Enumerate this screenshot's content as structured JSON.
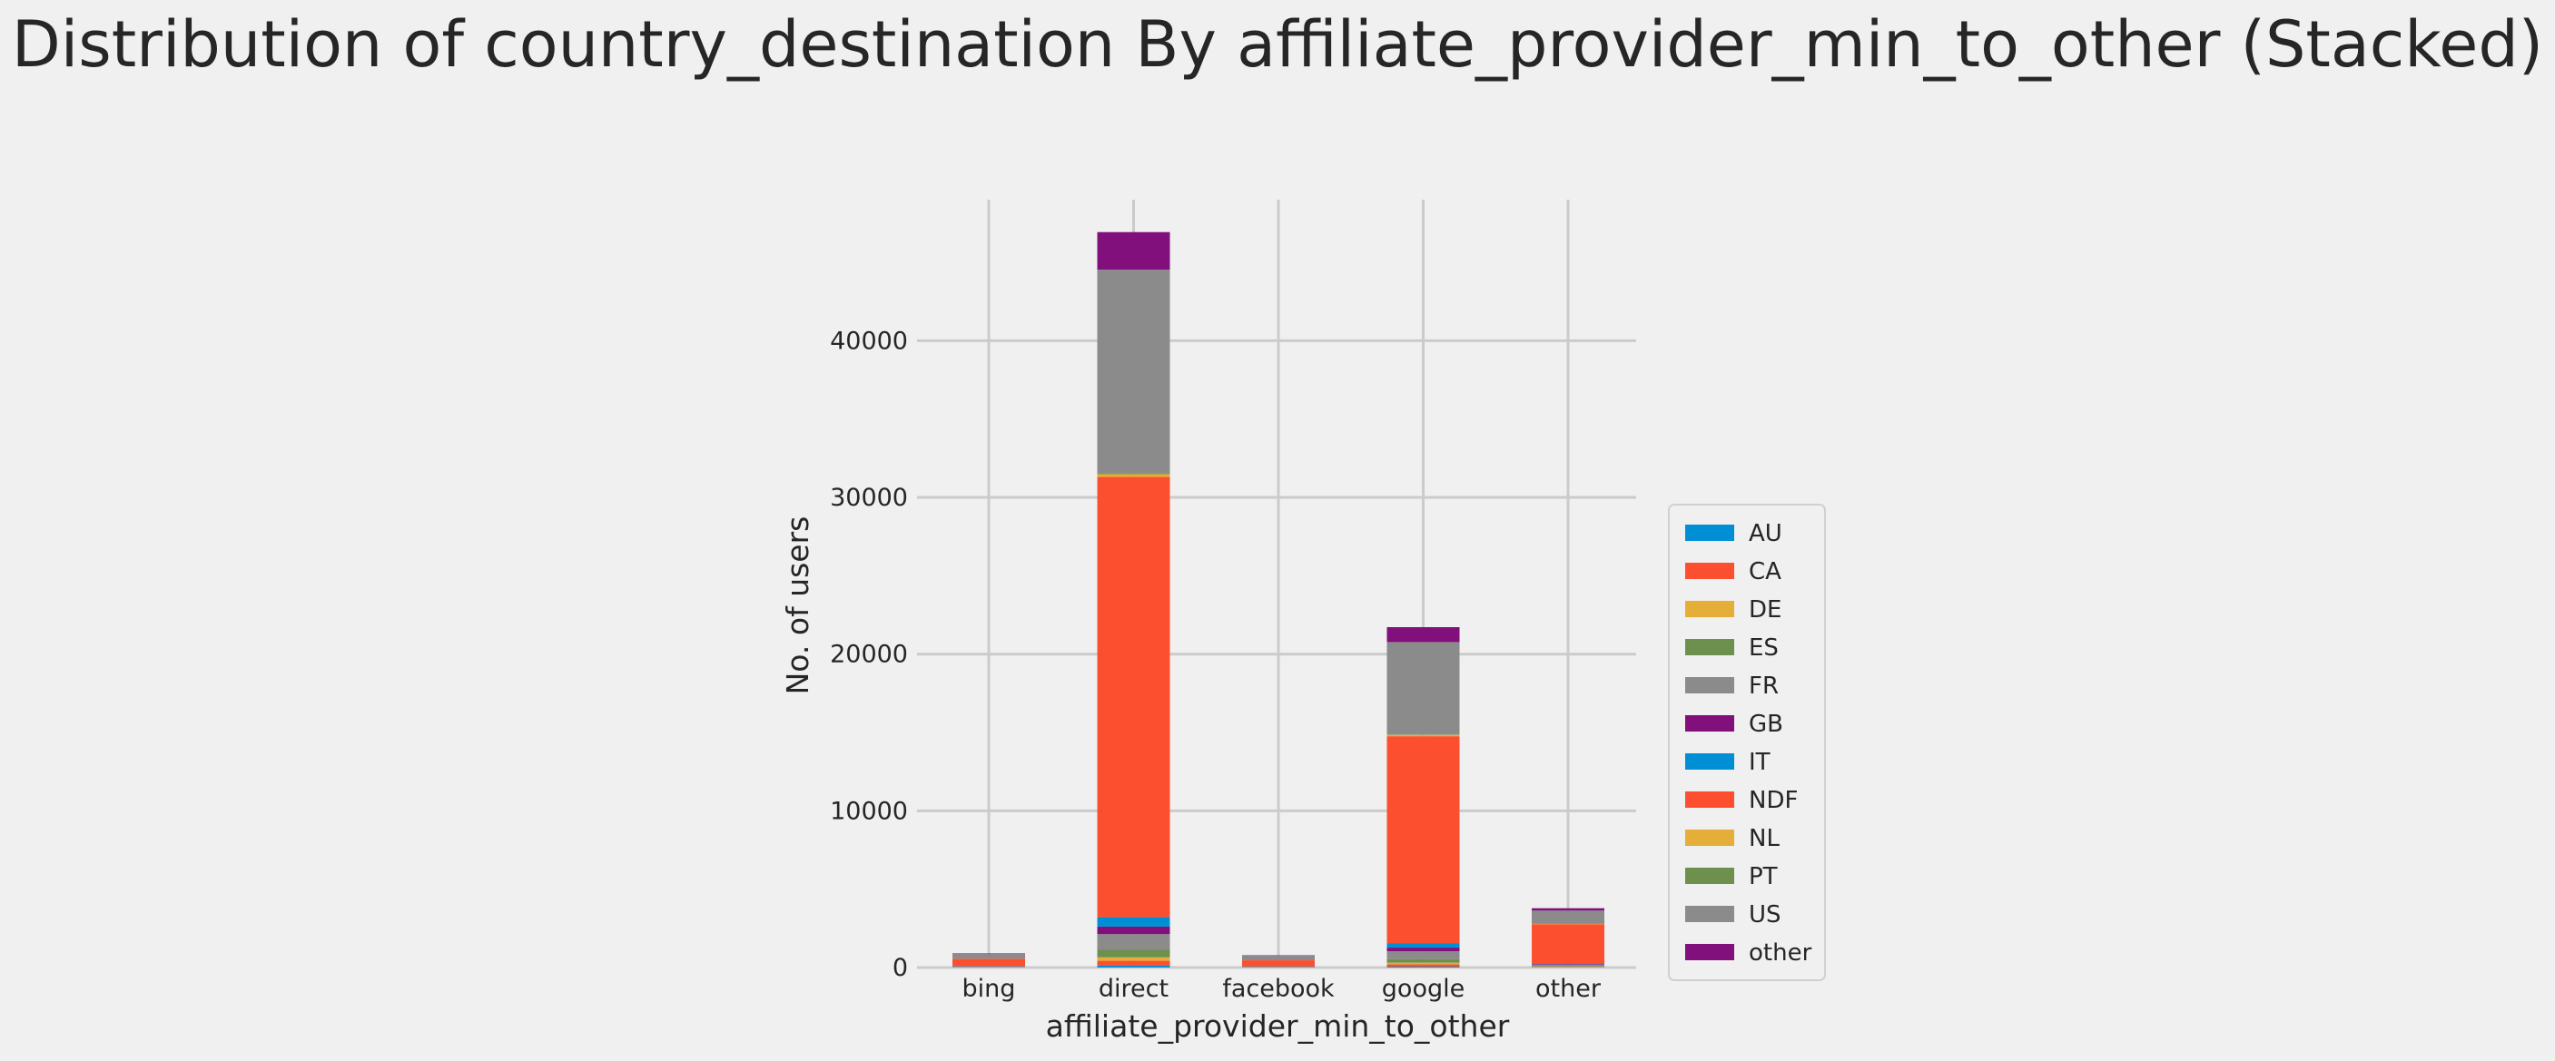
{
  "chart_data": {
    "type": "bar",
    "stacked": true,
    "title": "Distribution of country_destination By affiliate_provider_min_to_other (Stacked)",
    "xlabel": "affiliate_provider_min_to_other",
    "ylabel": "No. of users",
    "ylim": [
      0,
      49000
    ],
    "yticks": [
      0,
      10000,
      20000,
      30000,
      40000
    ],
    "grid": true,
    "legend_position": "right",
    "categories": [
      "bing",
      "direct",
      "facebook",
      "google",
      "other"
    ],
    "series": [
      {
        "name": "AU",
        "color": "#008fd5",
        "values": [
          4,
          120,
          3,
          60,
          10
        ]
      },
      {
        "name": "CA",
        "color": "#fc4f30",
        "values": [
          10,
          310,
          8,
          140,
          25
        ]
      },
      {
        "name": "DE",
        "color": "#e5ae38",
        "values": [
          8,
          220,
          6,
          110,
          20
        ]
      },
      {
        "name": "ES",
        "color": "#6d904f",
        "values": [
          15,
          480,
          12,
          230,
          40
        ]
      },
      {
        "name": "FR",
        "color": "#8b8b8b",
        "values": [
          35,
          1000,
          25,
          500,
          85
        ]
      },
      {
        "name": "GB",
        "color": "#810f7c",
        "values": [
          15,
          480,
          12,
          230,
          40
        ]
      },
      {
        "name": "IT",
        "color": "#008fd5",
        "values": [
          18,
          600,
          14,
          290,
          45
        ]
      },
      {
        "name": "NDF",
        "color": "#fc4f30",
        "values": [
          450,
          28100,
          380,
          13200,
          2500
        ]
      },
      {
        "name": "NL",
        "color": "#e5ae38",
        "values": [
          4,
          170,
          3,
          85,
          15
        ]
      },
      {
        "name": "PT",
        "color": "#6d904f",
        "values": [
          1,
          50,
          1,
          25,
          4
        ]
      },
      {
        "name": "US",
        "color": "#8b8b8b",
        "values": [
          300,
          13000,
          280,
          5900,
          850
        ]
      },
      {
        "name": "other",
        "color": "#810f7c",
        "values": [
          40,
          2400,
          35,
          950,
          150
        ]
      }
    ]
  }
}
